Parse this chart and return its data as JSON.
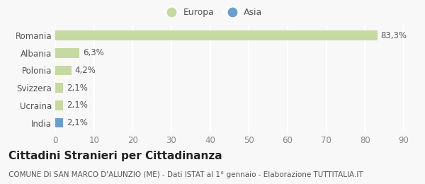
{
  "categories": [
    "Romania",
    "Albania",
    "Polonia",
    "Svizzera",
    "Ucraina",
    "India"
  ],
  "values": [
    83.3,
    6.3,
    4.2,
    2.1,
    2.1,
    2.1
  ],
  "labels": [
    "83,3%",
    "6,3%",
    "4,2%",
    "2,1%",
    "2,1%",
    "2,1%"
  ],
  "colors": [
    "#c5d9a0",
    "#c5d9a0",
    "#c5d9a0",
    "#c5d9a0",
    "#c5d9a0",
    "#6a9ecf"
  ],
  "legend": [
    {
      "label": "Europa",
      "color": "#c5d9a0"
    },
    {
      "label": "Asia",
      "color": "#6a9ecf"
    }
  ],
  "xlim": [
    0,
    90
  ],
  "xticks": [
    0,
    10,
    20,
    30,
    40,
    50,
    60,
    70,
    80,
    90
  ],
  "title": "Cittadini Stranieri per Cittadinanza",
  "subtitle": "COMUNE DI SAN MARCO D'ALUNZIO (ME) - Dati ISTAT al 1° gennaio - Elaborazione TUTTITALIA.IT",
  "background_color": "#f8f8f8",
  "bar_edge_color": "none",
  "grid_color": "#ffffff",
  "label_fontsize": 8.5,
  "tick_fontsize": 8.5,
  "title_fontsize": 11,
  "subtitle_fontsize": 7.5,
  "legend_fontsize": 9
}
